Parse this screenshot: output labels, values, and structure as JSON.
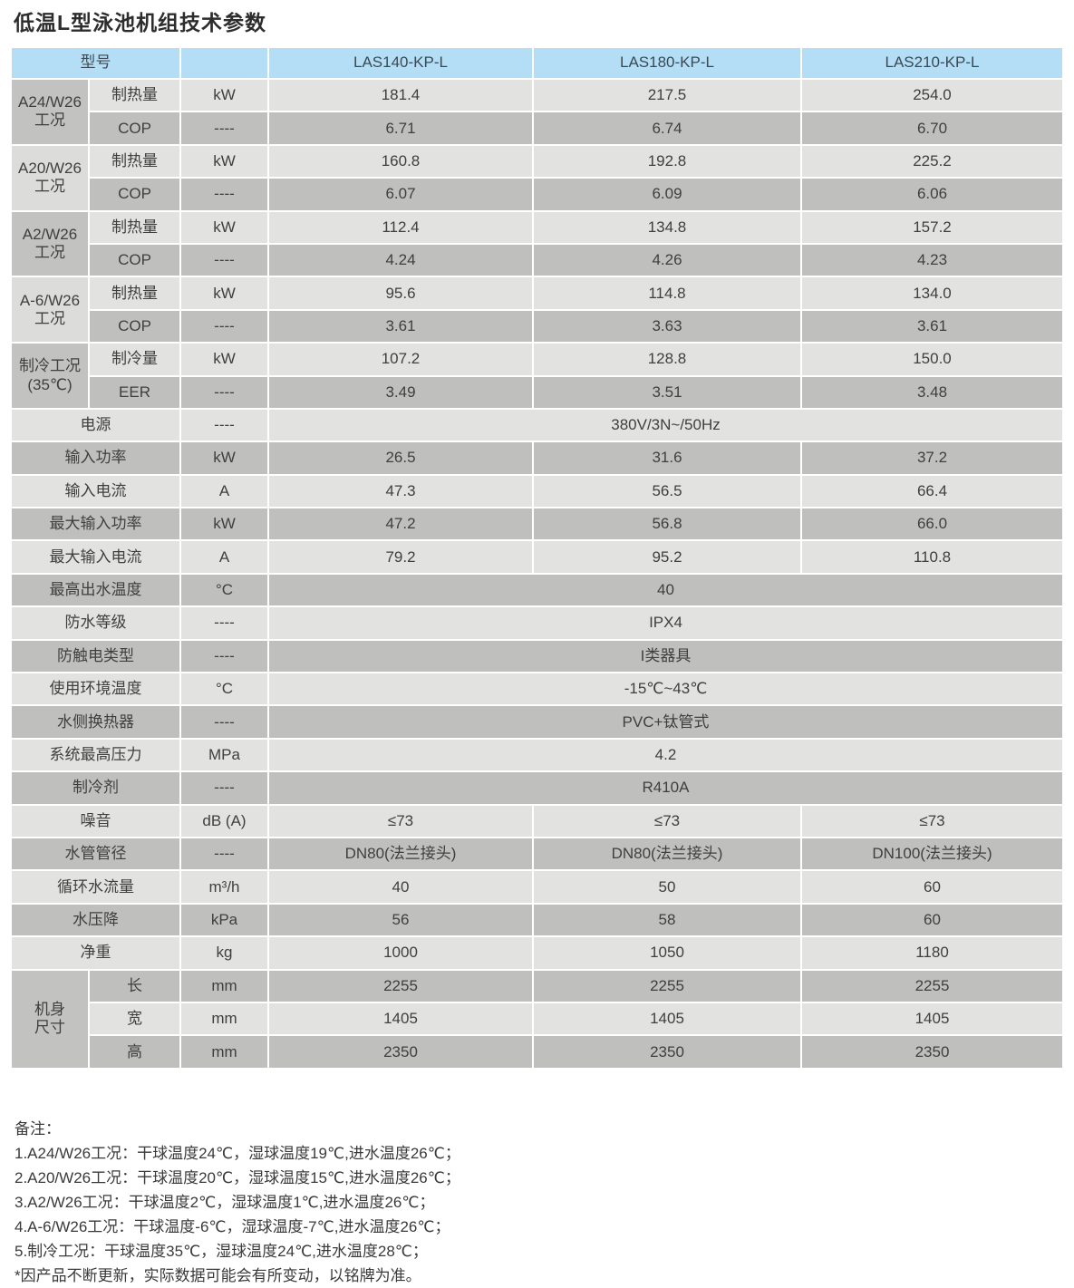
{
  "title": "低温L型泳池机组技术参数",
  "colors": {
    "header_bg": "#b4def6",
    "header_text": "#3b4a55",
    "row_light": "#e2e2e0",
    "row_dark": "#bfbfbd",
    "body_text": "#3f3f3f"
  },
  "table": {
    "header": {
      "model_col_label": "型号",
      "unit_col_label": "",
      "models": [
        "LAS140-KP-L",
        "LAS180-KP-L",
        "LAS210-KP-L"
      ]
    },
    "groups": [
      {
        "label": "A24/W26\n工况",
        "rows": [
          {
            "label": "制热量",
            "unit": "kW",
            "values": [
              "181.4",
              "217.5",
              "254.0"
            ]
          },
          {
            "label": "COP",
            "unit": "----",
            "values": [
              "6.71",
              "6.74",
              "6.70"
            ]
          }
        ]
      },
      {
        "label": "A20/W26\n工况",
        "rows": [
          {
            "label": "制热量",
            "unit": "kW",
            "values": [
              "160.8",
              "192.8",
              "225.2"
            ]
          },
          {
            "label": "COP",
            "unit": "----",
            "values": [
              "6.07",
              "6.09",
              "6.06"
            ]
          }
        ]
      },
      {
        "label": "A2/W26\n工况",
        "rows": [
          {
            "label": "制热量",
            "unit": "kW",
            "values": [
              "112.4",
              "134.8",
              "157.2"
            ]
          },
          {
            "label": "COP",
            "unit": "----",
            "values": [
              "4.24",
              "4.26",
              "4.23"
            ]
          }
        ]
      },
      {
        "label": "A-6/W26\n工况",
        "rows": [
          {
            "label": "制热量",
            "unit": "kW",
            "values": [
              "95.6",
              "114.8",
              "134.0"
            ]
          },
          {
            "label": "COP",
            "unit": "----",
            "values": [
              "3.61",
              "3.63",
              "3.61"
            ]
          }
        ]
      },
      {
        "label": "制冷工况\n(35℃)",
        "rows": [
          {
            "label": "制冷量",
            "unit": "kW",
            "values": [
              "107.2",
              "128.8",
              "150.0"
            ]
          },
          {
            "label": "EER",
            "unit": "----",
            "values": [
              "3.49",
              "3.51",
              "3.48"
            ]
          }
        ]
      }
    ],
    "rows": [
      {
        "label": "电源",
        "unit": "----",
        "merged": "380V/3N~/50Hz"
      },
      {
        "label": "输入功率",
        "unit": "kW",
        "values": [
          "26.5",
          "31.6",
          "37.2"
        ]
      },
      {
        "label": "输入电流",
        "unit": "A",
        "values": [
          "47.3",
          "56.5",
          "66.4"
        ]
      },
      {
        "label": "最大输入功率",
        "unit": "kW",
        "values": [
          "47.2",
          "56.8",
          "66.0"
        ]
      },
      {
        "label": "最大输入电流",
        "unit": "A",
        "values": [
          "79.2",
          "95.2",
          "110.8"
        ]
      },
      {
        "label": "最高出水温度",
        "unit": "°C",
        "merged": "40"
      },
      {
        "label": "防水等级",
        "unit": "----",
        "merged": "IPX4"
      },
      {
        "label": "防触电类型",
        "unit": "----",
        "merged": "I类器具"
      },
      {
        "label": "使用环境温度",
        "unit": "°C",
        "merged": "-15℃~43℃"
      },
      {
        "label": "水侧换热器",
        "unit": "----",
        "merged": "PVC+钛管式"
      },
      {
        "label": "系统最高压力",
        "unit": "MPa",
        "merged": "4.2"
      },
      {
        "label": "制冷剂",
        "unit": "----",
        "merged": "R410A"
      },
      {
        "label": "噪音",
        "unit": "dB (A)",
        "values": [
          "≤73",
          "≤73",
          "≤73"
        ]
      },
      {
        "label": "水管管径",
        "unit": "----",
        "values": [
          "DN80(法兰接头)",
          "DN80(法兰接头)",
          "DN100(法兰接头)"
        ]
      },
      {
        "label": "循环水流量",
        "unit": "m³/h",
        "values": [
          "40",
          "50",
          "60"
        ]
      },
      {
        "label": "水压降",
        "unit": "kPa",
        "values": [
          "56",
          "58",
          "60"
        ]
      },
      {
        "label": "净重",
        "unit": "kg",
        "values": [
          "1000",
          "1050",
          "1180"
        ]
      }
    ],
    "dimensions": {
      "label": "机身\n尺寸",
      "rows": [
        {
          "label": "长",
          "unit": "mm",
          "values": [
            "2255",
            "2255",
            "2255"
          ]
        },
        {
          "label": "宽",
          "unit": "mm",
          "values": [
            "1405",
            "1405",
            "1405"
          ]
        },
        {
          "label": "高",
          "unit": "mm",
          "values": [
            "2350",
            "2350",
            "2350"
          ]
        }
      ]
    }
  },
  "notes": {
    "heading": "备注：",
    "lines": [
      "1.A24/W26工况：干球温度24℃，湿球温度19℃,进水温度26℃；",
      "2.A20/W26工况：干球温度20℃，湿球温度15℃,进水温度26℃；",
      "3.A2/W26工况：干球温度2℃，湿球温度1℃,进水温度26℃；",
      "4.A-6/W26工况：干球温度-6℃，湿球温度-7℃,进水温度26℃；",
      "5.制冷工况：干球温度35℃，湿球温度24℃,进水温度28℃；",
      "*因产品不断更新，实际数据可能会有所变动，以铭牌为准。"
    ]
  }
}
